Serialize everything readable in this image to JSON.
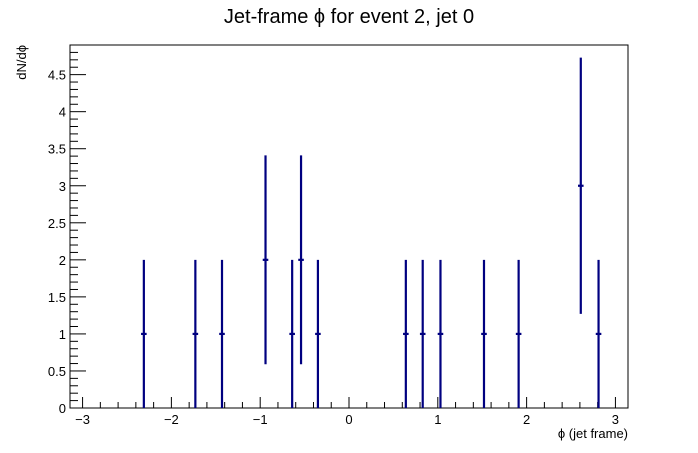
{
  "chart_data": {
    "type": "scatter",
    "title": "Jet-frame   ϕ for event 2, jet 0",
    "xlabel": "ϕ (jet frame)",
    "ylabel": "dN/dϕ",
    "xlim": [
      -3.1416,
      3.1416
    ],
    "ylim": [
      0,
      4.9
    ],
    "x_ticks": [
      -3,
      -2,
      -1,
      0,
      1,
      2,
      3
    ],
    "x_tick_labels": [
      "−3",
      "−2",
      "−1",
      "0",
      "1",
      "2",
      "3"
    ],
    "y_ticks": [
      0,
      0.5,
      1,
      1.5,
      2,
      2.5,
      3,
      3.5,
      4,
      4.5
    ],
    "y_tick_labels": [
      "0",
      "0.5",
      "1",
      "1.5",
      "2",
      "2.5",
      "3",
      "3.5",
      "4",
      "4.5"
    ],
    "bin_width": 0.0628,
    "points": [
      {
        "x": -2.31,
        "y": 1,
        "err_low": 1,
        "err_high": 1
      },
      {
        "x": -1.73,
        "y": 1,
        "err_low": 1,
        "err_high": 1
      },
      {
        "x": -1.43,
        "y": 1,
        "err_low": 1,
        "err_high": 1
      },
      {
        "x": -0.94,
        "y": 2,
        "err_low": 1.41,
        "err_high": 1.41
      },
      {
        "x": -0.64,
        "y": 1,
        "err_low": 1,
        "err_high": 1
      },
      {
        "x": -0.54,
        "y": 2,
        "err_low": 1.41,
        "err_high": 1.41
      },
      {
        "x": -0.35,
        "y": 1,
        "err_low": 1,
        "err_high": 1
      },
      {
        "x": 0.64,
        "y": 1,
        "err_low": 1,
        "err_high": 1
      },
      {
        "x": 0.83,
        "y": 1,
        "err_low": 1,
        "err_high": 1
      },
      {
        "x": 1.03,
        "y": 1,
        "err_low": 1,
        "err_high": 1
      },
      {
        "x": 1.52,
        "y": 1,
        "err_low": 1,
        "err_high": 1
      },
      {
        "x": 1.91,
        "y": 1,
        "err_low": 1,
        "err_high": 1
      },
      {
        "x": 2.61,
        "y": 3,
        "err_low": 1.73,
        "err_high": 1.73
      },
      {
        "x": 2.81,
        "y": 1,
        "err_low": 1,
        "err_high": 1
      }
    ],
    "marker_color": "#000080",
    "grid": false,
    "legend": "none"
  }
}
